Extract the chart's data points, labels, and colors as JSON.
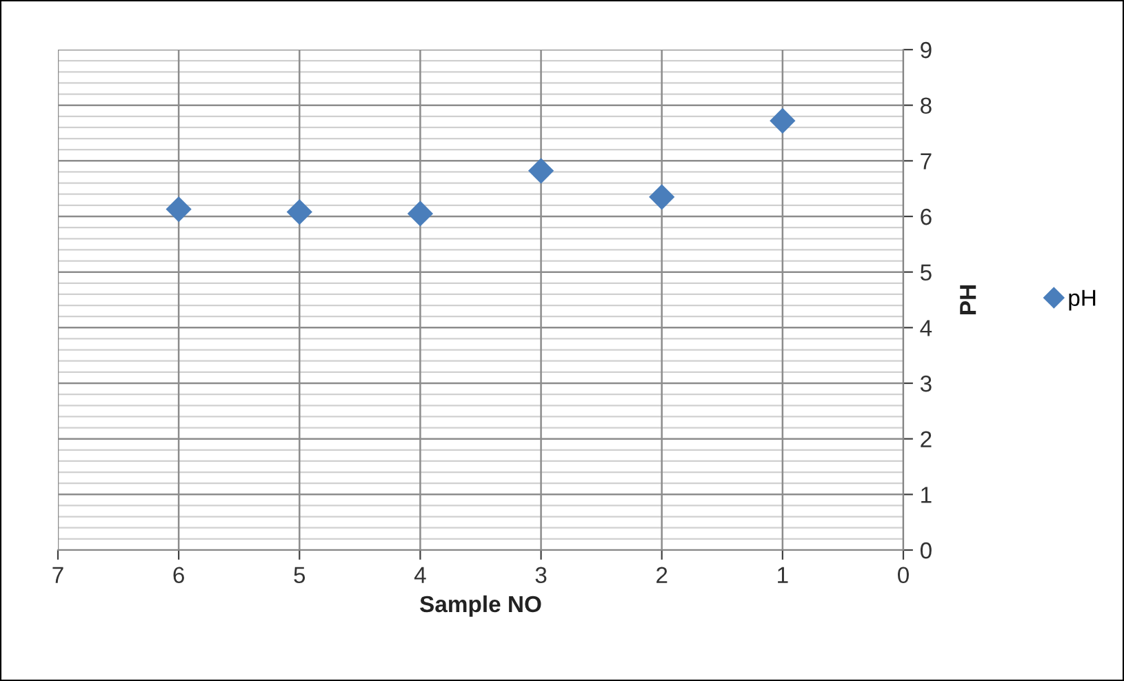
{
  "chart_data": {
    "type": "scatter",
    "xlabel": "Sample NO",
    "ylabel": "PH",
    "x": [
      6,
      5,
      4,
      3,
      2,
      1
    ],
    "series": [
      {
        "name": "pH",
        "color": "#4a7ebb",
        "values": [
          6.13,
          6.08,
          6.05,
          6.82,
          6.35,
          7.72
        ]
      }
    ],
    "xlim": [
      7,
      0
    ],
    "xticks": [
      7,
      6,
      5,
      4,
      3,
      2,
      1,
      0
    ],
    "ylim": [
      0,
      9
    ],
    "yticks": [
      0,
      1,
      2,
      3,
      4,
      5,
      6,
      7,
      8,
      9
    ],
    "grid": true,
    "legend": "right",
    "marker": "diamond"
  }
}
